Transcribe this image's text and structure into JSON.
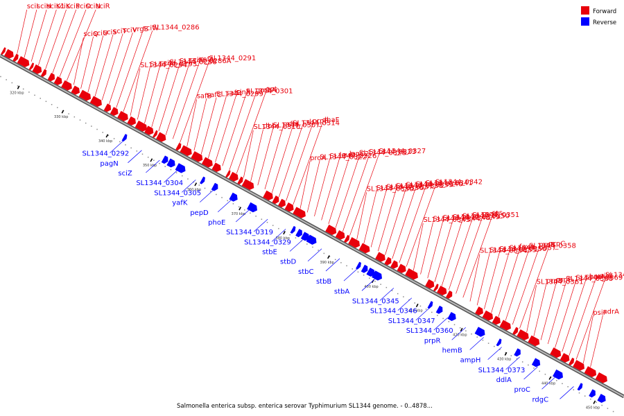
{
  "colors": {
    "forward": "#e8000b",
    "reverse": "#0000ff",
    "backbone": "#888888",
    "tick": "#000000",
    "dot": "#888888"
  },
  "legend": {
    "forward_label": "Forward",
    "reverse_label": "Reverse"
  },
  "caption": "Salmonella enterica subsp. enterica serovar Typhimurium SL1344 genome. - 0..4878...",
  "scale_labels": [
    "320 kbp",
    "330 kbp",
    "340 kbp",
    "350 kbp",
    "360 kbp",
    "370 kbp",
    "380 kbp",
    "390 kbp",
    "400 kbp",
    "410 kbp",
    "420 kbp",
    "430 kbp",
    "440 kbp",
    "450 kbp"
  ],
  "forward_labels": [
    "sciI",
    "sciH",
    "sciK1",
    "sciK",
    "sciP",
    "sciO",
    "sciN",
    "sciR",
    "sciQ",
    "sciU",
    "sciS",
    "sciT",
    "sciV",
    "vrgS",
    "sciW",
    "SL1344_0286",
    "SL1344_0294",
    "SL1344_0293",
    "sciY",
    "SL1344_0286",
    "SL1344_0286A",
    "sciX",
    "safA",
    "SL1344_0291",
    "safB",
    "safC",
    "SL1344_0299",
    "safD",
    "sinR",
    "SL1344_0301",
    "gmhA",
    "gpt",
    "SL1344_0310",
    "dbh",
    "SL1344_0307",
    "prfH",
    "SL1344_0314",
    "crl",
    "prpB",
    "dhaF",
    "proA",
    "SL1344_0322",
    "SL1344_0326",
    "leuD2",
    "leuC2",
    "SL1344_0328",
    "SL1344_0323",
    "SL1344_0327",
    "SL1344_0330",
    "SL1344_0336",
    "SL1344_0337",
    "SL1344_0338",
    "SL1344_0339",
    "SL1344_0340",
    "SL1344_0341",
    "SL1344_0342",
    "SL1344_0343",
    "SL1344_0344",
    "SL1344_0348",
    "SL1344_0349",
    "SL1344_0350",
    "SL1344_0351",
    "mod",
    "res",
    "SL1344_0354",
    "SL1344_0355",
    "SL1344_0356",
    "SL1344_0357",
    "foxA",
    "SL1344_0358",
    "prpB",
    "prpC",
    "SL1344_0361",
    "prpD",
    "prpE",
    "SL1344_0368",
    "SL1344_0369",
    "sbmA",
    "yaiW",
    "SL1344_0376",
    "psiF",
    "adrA"
  ],
  "reverse_labels": [
    "SL1344_0292",
    "pagN",
    "sciZ",
    "SL1344_0304",
    "SL1344_0305",
    "yafK",
    "pepD",
    "phoE",
    "SL1344_0319",
    "SL1344_0329",
    "stbE",
    "stbD",
    "stbC",
    "stbB",
    "stbA",
    "SL1344_0345",
    "SL1344_0346",
    "SL1344_0347",
    "SL1344_0360",
    "prpR",
    "hemB",
    "ampH",
    "SL1344_0373",
    "ddlA",
    "proC",
    "rdgC"
  ]
}
